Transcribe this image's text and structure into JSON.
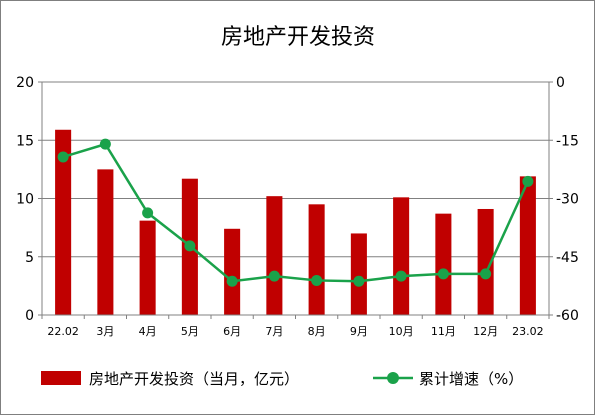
{
  "chart_data": {
    "type": "bar-line-combo",
    "title": "房地产开发投资",
    "categories": [
      "22.02",
      "3月",
      "4月",
      "5月",
      "6月",
      "7月",
      "8月",
      "9月",
      "10月",
      "11月",
      "12月",
      "23.02"
    ],
    "series": [
      {
        "name": "房地产开发投资（当月，亿元）",
        "type": "bar",
        "axis": "left",
        "color": "#c00000",
        "values": [
          15.9,
          12.5,
          8.1,
          11.7,
          7.4,
          10.2,
          9.5,
          7.0,
          10.1,
          8.7,
          9.1,
          11.9
        ]
      },
      {
        "name": "累计增速（%）",
        "type": "line",
        "axis": "right",
        "color": "#1aa24a",
        "values": [
          -19.3,
          -16.0,
          -33.7,
          -42.2,
          -51.3,
          -50.0,
          -51.1,
          -51.3,
          -50.0,
          -49.4,
          -49.4,
          -25.6
        ]
      }
    ],
    "y_left": {
      "min": 0,
      "max": 20,
      "ticks": [
        "0",
        "5",
        "10",
        "15",
        "20"
      ]
    },
    "y_right": {
      "min": -60,
      "max": 0,
      "ticks": [
        "-60",
        "-45",
        "-30",
        "-15",
        "0"
      ]
    },
    "grid": true,
    "legend_position": "bottom"
  }
}
